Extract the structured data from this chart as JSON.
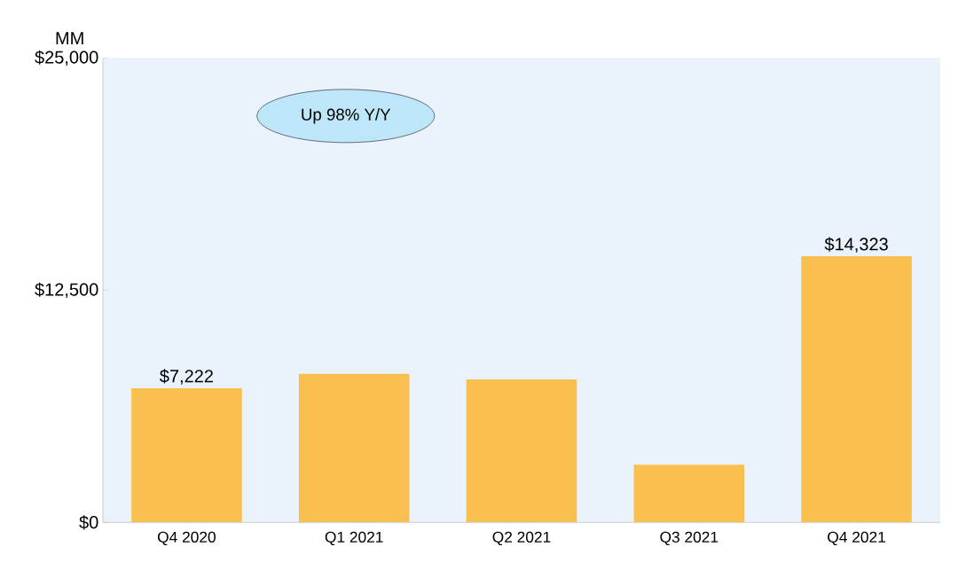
{
  "chart_data": {
    "type": "bar",
    "ylabel": "MM",
    "categories": [
      "Q4 2020",
      "Q1 2021",
      "Q2 2021",
      "Q3 2021",
      "Q4 2021"
    ],
    "values": [
      7222,
      8000,
      7700,
      3100,
      14323
    ],
    "value_labels": [
      "$7,222",
      null,
      null,
      null,
      "$14,323"
    ],
    "color": "#f9c04f",
    "ylim": [
      0,
      25000
    ],
    "yticks": [
      {
        "value": 0,
        "label": "$0"
      },
      {
        "value": 12500,
        "label": "$12,500"
      },
      {
        "value": 25000,
        "label": "$25,000"
      }
    ],
    "annotations": [
      "Up 98% Y/Y"
    ],
    "grid": false
  }
}
